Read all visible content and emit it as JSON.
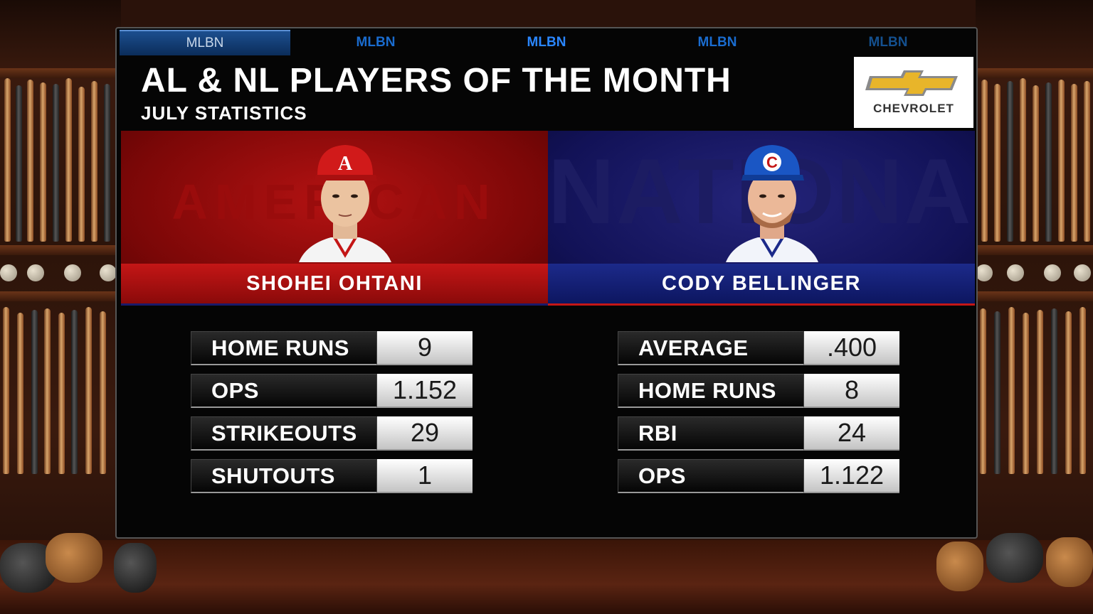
{
  "tabs": [
    "MLBN",
    "MLBN",
    "MLBN",
    "MLBN",
    "MLBN"
  ],
  "header": {
    "title": "AL & NL PLAYERS OF THE MONTH",
    "subtitle": "JULY STATISTICS"
  },
  "sponsor": {
    "name": "CHEVROLET",
    "logo_icon": "chevrolet-bowtie-icon",
    "color": "#e8b52a"
  },
  "players": {
    "al": {
      "watermark": "AMERICAN",
      "name": "SHOHEI OHTANI",
      "team_color": "#b31212",
      "cap_letter": "A",
      "stats": [
        {
          "label": "HOME RUNS",
          "value": "9"
        },
        {
          "label": "OPS",
          "value": "1.152"
        },
        {
          "label": "STRIKEOUTS",
          "value": "29"
        },
        {
          "label": "SHUTOUTS",
          "value": "1"
        }
      ]
    },
    "nl": {
      "watermark": "NATIONAL",
      "name": "CODY BELLINGER",
      "team_color": "#1c2a8a",
      "cap_letter": "C",
      "stats": [
        {
          "label": "AVERAGE",
          "value": ".400"
        },
        {
          "label": "HOME RUNS",
          "value": "8"
        },
        {
          "label": "RBI",
          "value": "24"
        },
        {
          "label": "OPS",
          "value": "1.122"
        }
      ]
    }
  }
}
